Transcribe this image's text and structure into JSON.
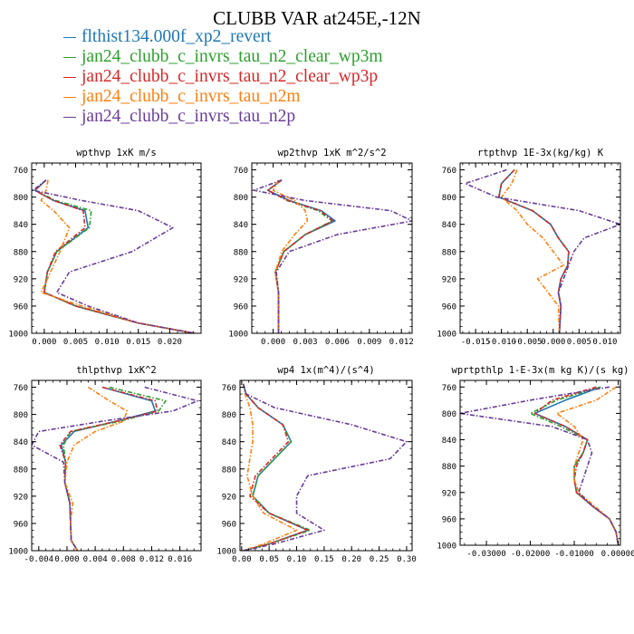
{
  "title": "CLUBB VAR at245E,-12N",
  "legend": [
    {
      "label": "flthist134.000f_xp2_revert",
      "color": "#1f77b4",
      "dash": false
    },
    {
      "label": "jan24_clubb_c_invrs_tau_n2_clear_wp3m",
      "color": "#2ca02c",
      "dash": true
    },
    {
      "label": "jan24_clubb_c_invrs_tau_n2_clear_wp3p",
      "color": "#d62728",
      "dash": true
    },
    {
      "label": "jan24_clubb_c_invrs_tau_n2m",
      "color": "#ff7f0e",
      "dash": true
    },
    {
      "label": "jan24_clubb_c_invrs_tau_n2p",
      "color": "#6a3d9a",
      "dash": true
    }
  ],
  "chart_data": [
    {
      "type": "line",
      "title": "wpthvp   1xK m/s",
      "xlim": [
        -0.002,
        0.025
      ],
      "ylim": [
        1000,
        750
      ],
      "xticks": [
        0.0,
        0.005,
        0.01,
        0.015,
        0.02
      ],
      "xticklabels": [
        "0.000",
        "0.005",
        "0.010",
        "0.015",
        "0.020"
      ],
      "yticks": [
        760,
        800,
        840,
        880,
        920,
        960,
        1000
      ],
      "y": [
        775,
        790,
        805,
        820,
        845,
        880,
        910,
        940,
        960,
        985,
        1000
      ],
      "series": [
        {
          "values": [
            0.0003,
            -0.0015,
            0.0015,
            0.0065,
            0.007,
            0.002,
            0.0005,
            0.0,
            0.005,
            0.015,
            0.024
          ]
        },
        {
          "values": [
            0.0003,
            -0.0015,
            0.0018,
            0.0075,
            0.0072,
            0.002,
            0.0005,
            0.0,
            0.005,
            0.015,
            0.024
          ]
        },
        {
          "values": [
            0.0003,
            -0.0015,
            0.0015,
            0.0062,
            0.0065,
            0.0018,
            0.0005,
            0.0,
            0.005,
            0.015,
            0.024
          ]
        },
        {
          "values": [
            0.0006,
            0.0003,
            -0.0005,
            0.0015,
            0.004,
            0.0025,
            0.001,
            -0.0005,
            0.006,
            0.015,
            0.024
          ]
        },
        {
          "values": [
            0.0003,
            -0.0018,
            0.006,
            0.015,
            0.0205,
            0.014,
            0.004,
            0.002,
            0.007,
            0.015,
            0.024
          ]
        }
      ]
    },
    {
      "type": "line",
      "title": "wp2thvp   1xK m^2/s^2",
      "xlim": [
        -0.002,
        0.013
      ],
      "ylim": [
        1000,
        750
      ],
      "xticks": [
        0.0,
        0.003,
        0.006,
        0.009,
        0.012
      ],
      "xticklabels": [
        "0.000",
        "0.003",
        "0.006",
        "0.009",
        "0.012"
      ],
      "yticks": [
        760,
        800,
        840,
        880,
        920,
        960,
        1000
      ],
      "y": [
        775,
        790,
        805,
        820,
        835,
        855,
        880,
        910,
        940,
        970,
        1000
      ],
      "series": [
        {
          "values": [
            0.0008,
            -0.0005,
            0.0015,
            0.0045,
            0.0058,
            0.003,
            0.001,
            0.0002,
            0.0005,
            0.0005,
            0.0005
          ]
        },
        {
          "values": [
            0.0008,
            -0.0005,
            0.0013,
            0.0042,
            0.0055,
            0.003,
            0.001,
            0.0002,
            0.0005,
            0.0005,
            0.0005
          ]
        },
        {
          "values": [
            0.0008,
            -0.0005,
            0.0014,
            0.0044,
            0.0056,
            0.003,
            0.001,
            0.0002,
            0.0005,
            0.0005,
            0.0005
          ]
        },
        {
          "values": [
            0.0005,
            0.0,
            0.002,
            0.003,
            0.0032,
            0.002,
            0.0008,
            0.0002,
            0.0005,
            0.0005,
            0.0005
          ]
        },
        {
          "values": [
            0.0008,
            -0.0018,
            0.003,
            0.011,
            0.013,
            0.006,
            0.0015,
            0.0003,
            0.0005,
            0.0005,
            0.0005
          ]
        }
      ]
    },
    {
      "type": "line",
      "title": "rtpthvp   1E-3x(kg/kg) K",
      "xlim": [
        -0.018,
        0.013
      ],
      "ylim": [
        1000,
        750
      ],
      "xticks": [
        -0.015,
        -0.01,
        -0.005,
        0.0,
        0.005,
        0.01
      ],
      "xticklabels": [
        "-0.015",
        "-0.010",
        "-0.005",
        "0.000",
        "0.005",
        "0.010"
      ],
      "yticks": [
        760,
        800,
        840,
        880,
        920,
        960,
        1000
      ],
      "y": [
        760,
        780,
        800,
        820,
        840,
        860,
        880,
        900,
        920,
        940,
        960,
        1000
      ],
      "series": [
        {
          "values": [
            -0.0075,
            -0.01,
            -0.0105,
            -0.004,
            -0.0005,
            0.001,
            0.003,
            0.0028,
            0.0015,
            0.001,
            0.0015,
            0.0012
          ]
        },
        {
          "values": [
            -0.0075,
            -0.01,
            -0.0105,
            -0.004,
            -0.0005,
            0.001,
            0.003,
            0.0028,
            0.0015,
            0.001,
            0.0015,
            0.0012
          ]
        },
        {
          "values": [
            -0.0075,
            -0.01,
            -0.0105,
            -0.004,
            -0.0005,
            0.001,
            0.003,
            0.0028,
            0.0015,
            0.001,
            0.0015,
            0.0012
          ]
        },
        {
          "values": [
            -0.007,
            -0.008,
            -0.01,
            -0.007,
            -0.005,
            -0.002,
            0.0,
            0.002,
            -0.003,
            -0.001,
            0.001,
            0.0012
          ]
        },
        {
          "values": [
            -0.009,
            -0.017,
            -0.011,
            0.005,
            0.013,
            0.006,
            0.004,
            0.003,
            0.002,
            0.001,
            0.0015,
            0.0012
          ]
        }
      ]
    },
    {
      "type": "line",
      "title": "thlpthvp   1xK^2",
      "xlim": [
        -0.005,
        0.019
      ],
      "ylim": [
        1000,
        750
      ],
      "xticks": [
        -0.004,
        0.0,
        0.004,
        0.008,
        0.012,
        0.016
      ],
      "xticklabels": [
        "-0.004",
        "0.000",
        "0.004",
        "0.008",
        "0.012",
        "0.016"
      ],
      "yticks": [
        760,
        800,
        840,
        880,
        920,
        960,
        1000
      ],
      "y": [
        760,
        780,
        795,
        810,
        825,
        845,
        870,
        900,
        930,
        960,
        985,
        1000
      ],
      "series": [
        {
          "values": [
            0.005,
            0.012,
            0.0125,
            0.007,
            0.001,
            -0.0008,
            -0.0002,
            -0.0003,
            0.0004,
            0.0005,
            0.0006,
            0.0015
          ]
        },
        {
          "values": [
            0.006,
            0.014,
            0.013,
            0.0075,
            0.0005,
            -0.0005,
            -0.0002,
            -0.0003,
            0.0004,
            0.0005,
            0.0006,
            0.0015
          ]
        },
        {
          "values": [
            0.005,
            0.0125,
            0.0128,
            0.007,
            0.0005,
            -0.001,
            -0.0002,
            -0.0003,
            0.0004,
            0.0005,
            0.0006,
            0.0015
          ]
        },
        {
          "values": [
            0.003,
            0.006,
            0.0085,
            0.008,
            0.004,
            0.001,
            0.0,
            -0.0003,
            0.0008,
            0.0005,
            0.0006,
            0.0015
          ]
        },
        {
          "values": [
            0.011,
            0.0185,
            0.015,
            0.005,
            -0.004,
            -0.005,
            -0.0005,
            -0.0003,
            0.0004,
            0.0005,
            0.0006,
            0.0015
          ]
        }
      ]
    },
    {
      "type": "line",
      "title": "wp4   1x(m^4)/(s^4)",
      "xlim": [
        -0.003,
        0.31
      ],
      "ylim": [
        1000,
        750
      ],
      "xticks": [
        0.0,
        0.05,
        0.1,
        0.15,
        0.2,
        0.25,
        0.3
      ],
      "xticklabels": [
        "0.00",
        "0.05",
        "0.10",
        "0.15",
        "0.20",
        "0.25",
        "0.30"
      ],
      "yticks": [
        760,
        800,
        840,
        880,
        920,
        960,
        1000
      ],
      "y": [
        755,
        770,
        790,
        815,
        840,
        865,
        890,
        920,
        945,
        970,
        990,
        1000
      ],
      "series": [
        {
          "values": [
            0.003,
            0.008,
            0.03,
            0.075,
            0.09,
            0.06,
            0.03,
            0.02,
            0.05,
            0.12,
            0.05,
            0.003
          ]
        },
        {
          "values": [
            0.003,
            0.008,
            0.03,
            0.075,
            0.09,
            0.06,
            0.03,
            0.02,
            0.05,
            0.125,
            0.05,
            0.003
          ]
        },
        {
          "values": [
            0.003,
            0.008,
            0.03,
            0.075,
            0.085,
            0.055,
            0.025,
            0.015,
            0.05,
            0.12,
            0.05,
            0.003
          ]
        },
        {
          "values": [
            0.003,
            0.006,
            0.015,
            0.02,
            0.02,
            0.015,
            0.01,
            0.02,
            0.04,
            0.1,
            0.04,
            0.003
          ]
        },
        {
          "values": [
            0.003,
            0.008,
            0.06,
            0.2,
            0.3,
            0.27,
            0.12,
            0.1,
            0.1,
            0.15,
            0.06,
            0.003
          ]
        }
      ]
    },
    {
      "type": "line",
      "title": "wprtpthlp   1-E-3x(m kg K)/(s kg)",
      "xlim": [
        -0.036,
        0.0005
      ],
      "ylim": [
        1000,
        750
      ],
      "xticks": [
        -0.03,
        -0.02,
        -0.01,
        0.0
      ],
      "xticklabels": [
        "-0.03000",
        "-0.02000",
        "-0.01000",
        "0.00000"
      ],
      "yticks": [
        760,
        800,
        840,
        880,
        920,
        960,
        1000
      ],
      "y": [
        760,
        780,
        800,
        820,
        840,
        860,
        880,
        900,
        920,
        940,
        960,
        980,
        1000
      ],
      "series": [
        {
          "values": [
            -0.004,
            -0.012,
            -0.019,
            -0.012,
            -0.007,
            -0.008,
            -0.01,
            -0.01,
            -0.0095,
            -0.006,
            -0.002,
            -0.0005,
            0.0
          ]
        },
        {
          "values": [
            -0.004,
            -0.014,
            -0.02,
            -0.013,
            -0.007,
            -0.008,
            -0.01,
            -0.01,
            -0.0095,
            -0.006,
            -0.002,
            -0.0005,
            0.0
          ]
        },
        {
          "values": [
            -0.005,
            -0.015,
            -0.019,
            -0.012,
            -0.007,
            -0.008,
            -0.0095,
            -0.01,
            -0.0095,
            -0.006,
            -0.002,
            -0.0005,
            0.0
          ]
        },
        {
          "values": [
            -0.0005,
            -0.005,
            -0.014,
            -0.01,
            -0.008,
            -0.009,
            -0.01,
            -0.01,
            -0.009,
            -0.0055,
            -0.002,
            -0.0005,
            0.0
          ]
        },
        {
          "values": [
            -0.002,
            -0.02,
            -0.036,
            -0.015,
            -0.007,
            -0.006,
            -0.007,
            -0.008,
            -0.009,
            -0.006,
            -0.002,
            -0.0005,
            0.0
          ]
        }
      ]
    }
  ]
}
